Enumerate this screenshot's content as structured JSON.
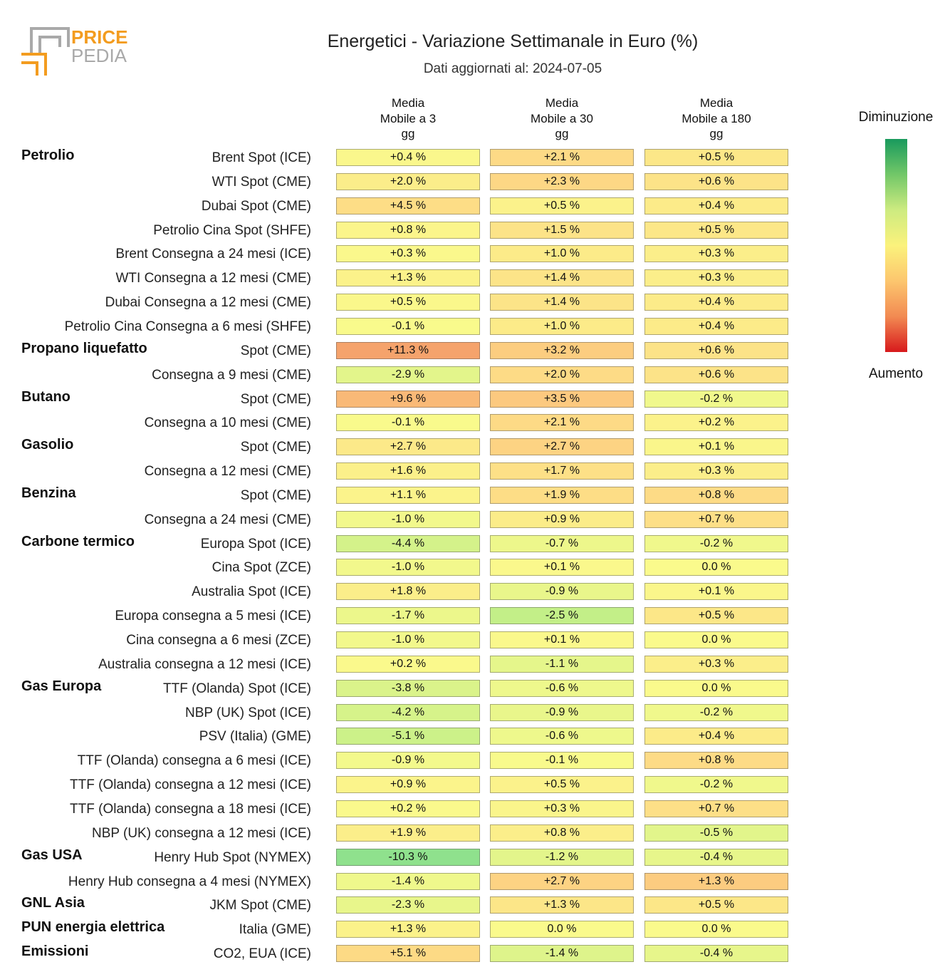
{
  "logo": {
    "word1": "PRICE",
    "word2": "PEDIA"
  },
  "colors": {
    "logo_orange": "#f39c1f",
    "logo_gray": "#a9a9a9"
  },
  "chart_data": {
    "type": "heatmap",
    "title": "Energetici - Variazione Settimanale in Euro (%)",
    "subtitle": "Dati aggiornati al: 2024-07-05",
    "unit": "%",
    "columns": [
      {
        "lines": [
          "Media",
          "Mobile a 3",
          "gg"
        ]
      },
      {
        "lines": [
          "Media",
          "Mobile a 30",
          "gg"
        ]
      },
      {
        "lines": [
          "Media",
          "Mobile a 180",
          "gg"
        ]
      }
    ],
    "legend": {
      "top_label": "Diminuzione",
      "bottom_label": "Aumento",
      "colors": [
        "#199a5d",
        "#72c768",
        "#cdeb80",
        "#fbf27c",
        "#fcc66e",
        "#f28a52",
        "#d7191c"
      ]
    },
    "groups": [
      {
        "name": "Petrolio",
        "rows": [
          {
            "label": "Brent Spot (ICE)",
            "values": [
              0.4,
              2.1,
              0.5
            ]
          },
          {
            "label": "WTI Spot (CME)",
            "values": [
              2.0,
              2.3,
              0.6
            ]
          },
          {
            "label": "Dubai Spot (CME)",
            "values": [
              4.5,
              0.5,
              0.4
            ]
          },
          {
            "label": "Petrolio Cina Spot (SHFE)",
            "values": [
              0.8,
              1.5,
              0.5
            ]
          },
          {
            "label": "Brent Consegna a 24 mesi (ICE)",
            "values": [
              0.3,
              1.0,
              0.3
            ]
          },
          {
            "label": "WTI Consegna a 12 mesi (CME)",
            "values": [
              1.3,
              1.4,
              0.3
            ]
          },
          {
            "label": "Dubai Consegna a 12 mesi (CME)",
            "values": [
              0.5,
              1.4,
              0.4
            ]
          },
          {
            "label": "Petrolio Cina Consegna a 6 mesi (SHFE)",
            "values": [
              -0.1,
              1.0,
              0.4
            ]
          }
        ]
      },
      {
        "name": "Propano liquefatto",
        "rows": [
          {
            "label": "Spot (CME)",
            "values": [
              11.3,
              3.2,
              0.6
            ]
          },
          {
            "label": "Consegna a 9 mesi (CME)",
            "values": [
              -2.9,
              2.0,
              0.6
            ]
          }
        ]
      },
      {
        "name": "Butano",
        "rows": [
          {
            "label": "Spot (CME)",
            "values": [
              9.6,
              3.5,
              -0.2
            ]
          },
          {
            "label": "Consegna a 10 mesi (CME)",
            "values": [
              -0.1,
              2.1,
              0.2
            ]
          }
        ]
      },
      {
        "name": "Gasolio",
        "rows": [
          {
            "label": "Spot (CME)",
            "values": [
              2.7,
              2.7,
              0.1
            ]
          },
          {
            "label": "Consegna a 12 mesi (CME)",
            "values": [
              1.6,
              1.7,
              0.3
            ]
          }
        ]
      },
      {
        "name": "Benzina",
        "rows": [
          {
            "label": "Spot (CME)",
            "values": [
              1.1,
              1.9,
              0.8
            ]
          },
          {
            "label": "Consegna a 24 mesi (CME)",
            "values": [
              -1.0,
              0.9,
              0.7
            ]
          }
        ]
      },
      {
        "name": "Carbone termico",
        "rows": [
          {
            "label": "Europa Spot (ICE)",
            "values": [
              -4.4,
              -0.7,
              -0.2
            ]
          },
          {
            "label": "Cina Spot (ZCE)",
            "values": [
              -1.0,
              0.1,
              0.0
            ]
          },
          {
            "label": "Australia Spot (ICE)",
            "values": [
              1.8,
              -0.9,
              0.1
            ]
          },
          {
            "label": "Europa consegna a 5 mesi (ICE)",
            "values": [
              -1.7,
              -2.5,
              0.5
            ]
          },
          {
            "label": "Cina consegna a 6 mesi (ZCE)",
            "values": [
              -1.0,
              0.1,
              0.0
            ]
          },
          {
            "label": "Australia consegna a 12 mesi (ICE)",
            "values": [
              0.2,
              -1.1,
              0.3
            ]
          }
        ]
      },
      {
        "name": "Gas Europa",
        "rows": [
          {
            "label": "TTF (Olanda) Spot (ICE)",
            "values": [
              -3.8,
              -0.6,
              0.0
            ]
          },
          {
            "label": "NBP (UK) Spot (ICE)",
            "values": [
              -4.2,
              -0.9,
              -0.2
            ]
          },
          {
            "label": "PSV (Italia) (GME)",
            "values": [
              -5.1,
              -0.6,
              0.4
            ]
          },
          {
            "label": "TTF (Olanda) consegna a 6 mesi (ICE)",
            "values": [
              -0.9,
              -0.1,
              0.8
            ]
          },
          {
            "label": "TTF (Olanda) consegna a 12 mesi (ICE)",
            "values": [
              0.9,
              0.5,
              -0.2
            ]
          },
          {
            "label": "TTF (Olanda) consegna a 18 mesi (ICE)",
            "values": [
              0.2,
              0.3,
              0.7
            ]
          },
          {
            "label": "NBP (UK) consegna a 12 mesi (ICE)",
            "values": [
              1.9,
              0.8,
              -0.5
            ]
          }
        ]
      },
      {
        "name": "Gas USA",
        "rows": [
          {
            "label": "Henry Hub Spot (NYMEX)",
            "values": [
              -10.3,
              -1.2,
              -0.4
            ]
          },
          {
            "label": "Henry Hub consegna a 4 mesi (NYMEX)",
            "values": [
              -1.4,
              2.7,
              1.3
            ]
          }
        ]
      },
      {
        "name": "GNL Asia",
        "rows": [
          {
            "label": "JKM Spot (CME)",
            "values": [
              -2.3,
              1.3,
              0.5
            ]
          }
        ]
      },
      {
        "name": "PUN energia elettrica",
        "rows": [
          {
            "label": "Italia (GME)",
            "values": [
              1.3,
              0.0,
              0.0
            ]
          }
        ]
      },
      {
        "name": "Emissioni",
        "rows": [
          {
            "label": "CO2, EUA (ICE)",
            "values": [
              5.1,
              -1.4,
              -0.4
            ]
          }
        ]
      }
    ]
  }
}
